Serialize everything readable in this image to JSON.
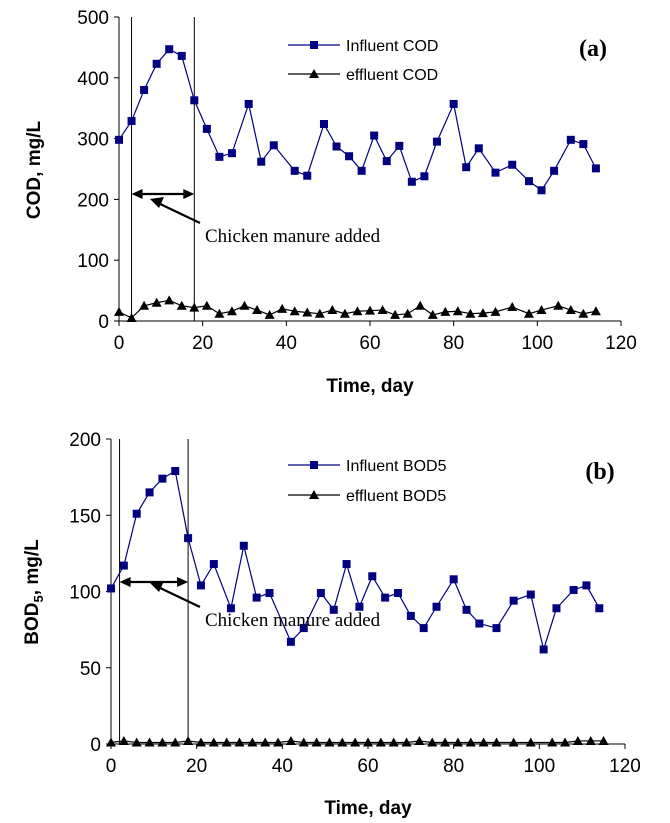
{
  "chart_data": [
    {
      "type": "line",
      "panel_label": "(a)",
      "xlabel": "Time, day",
      "ylabel": "COD, mg/L",
      "xlim": [
        0,
        120
      ],
      "ylim": [
        0,
        500
      ],
      "xticks": [
        "0",
        "20",
        "40",
        "60",
        "80",
        "100",
        "120"
      ],
      "yticks": [
        "0",
        "100",
        "200",
        "300",
        "400",
        "500"
      ],
      "grid": false,
      "legend_position": "top-center",
      "annotation": "Chicken manure added",
      "vertical_lines_x": [
        0,
        3,
        18
      ],
      "arrow_range": [
        3,
        18
      ],
      "series": [
        {
          "name": "Influent COD",
          "color": "#000080",
          "marker": "square",
          "x": [
            0,
            3,
            6,
            9,
            12,
            15,
            18,
            21,
            24,
            27,
            31,
            34,
            37,
            42,
            45,
            49,
            52,
            55,
            58,
            61,
            64,
            67,
            70,
            73,
            76,
            80,
            83,
            86,
            90,
            94,
            98,
            101,
            104,
            108,
            111,
            114
          ],
          "y": [
            298,
            329,
            380,
            423,
            447,
            436,
            363,
            316,
            270,
            276,
            357,
            262,
            289,
            247,
            239,
            324,
            287,
            271,
            247,
            305,
            263,
            288,
            229,
            238,
            295,
            357,
            253,
            284,
            244,
            257,
            230,
            215,
            247,
            298,
            291,
            251
          ]
        },
        {
          "name": "effluent COD",
          "color": "#000000",
          "marker": "triangle",
          "x": [
            0,
            3,
            6,
            9,
            12,
            15,
            18,
            21,
            24,
            27,
            30,
            33,
            36,
            39,
            42,
            45,
            48,
            51,
            54,
            57,
            60,
            63,
            66,
            69,
            72,
            75,
            78,
            81,
            84,
            87,
            90,
            94,
            98,
            101,
            105,
            108,
            111,
            114
          ],
          "y": [
            15,
            5,
            25,
            30,
            34,
            25,
            22,
            25,
            12,
            16,
            25,
            18,
            10,
            20,
            16,
            14,
            12,
            18,
            12,
            16,
            17,
            18,
            10,
            12,
            25,
            10,
            15,
            16,
            12,
            13,
            15,
            23,
            12,
            18,
            25,
            18,
            12,
            16
          ]
        }
      ]
    },
    {
      "type": "line",
      "panel_label": "(b)",
      "xlabel": "Time, day",
      "ylabel": "BOD5, mg/L",
      "xlim": [
        0,
        120
      ],
      "ylim": [
        0,
        200
      ],
      "xticks": [
        "0",
        "20",
        "40",
        "60",
        "80",
        "100",
        "120"
      ],
      "yticks": [
        "0",
        "50",
        "100",
        "150",
        "200"
      ],
      "grid": false,
      "legend_position": "top-center",
      "annotation": "Chicken manure added",
      "vertical_lines_x": [
        2,
        18
      ],
      "arrow_range": [
        2,
        18
      ],
      "series": [
        {
          "name": "Influent BOD5",
          "color": "#000080",
          "marker": "square",
          "x": [
            0,
            3,
            6,
            9,
            12,
            15,
            18,
            21,
            24,
            28,
            31,
            34,
            37,
            42,
            45,
            49,
            52,
            55,
            58,
            61,
            64,
            67,
            70,
            73,
            76,
            80,
            83,
            86,
            90,
            94,
            98,
            101,
            104,
            108,
            111,
            114
          ],
          "y": [
            102,
            117,
            151,
            165,
            174,
            179,
            135,
            104,
            118,
            89,
            130,
            96,
            99,
            67,
            76,
            99,
            88,
            118,
            90,
            110,
            96,
            99,
            84,
            76,
            90,
            108,
            88,
            79,
            76,
            94,
            98,
            62,
            89,
            101,
            104,
            89
          ]
        },
        {
          "name": "effluent BOD5",
          "color": "#000000",
          "marker": "triangle",
          "x": [
            0,
            3,
            6,
            9,
            12,
            15,
            18,
            21,
            24,
            27,
            30,
            33,
            36,
            39,
            42,
            45,
            48,
            51,
            54,
            57,
            60,
            63,
            66,
            69,
            72,
            75,
            78,
            81,
            84,
            87,
            90,
            94,
            98,
            103,
            106,
            109,
            112,
            115
          ],
          "y": [
            1,
            2,
            1,
            1,
            1,
            1,
            2,
            1,
            1,
            1,
            1,
            1,
            1,
            1,
            2,
            1,
            1,
            1,
            1,
            1,
            1,
            1,
            1,
            1,
            2,
            1,
            1,
            1,
            1,
            1,
            1,
            1,
            1,
            1,
            1,
            2,
            2,
            2
          ]
        }
      ]
    }
  ]
}
